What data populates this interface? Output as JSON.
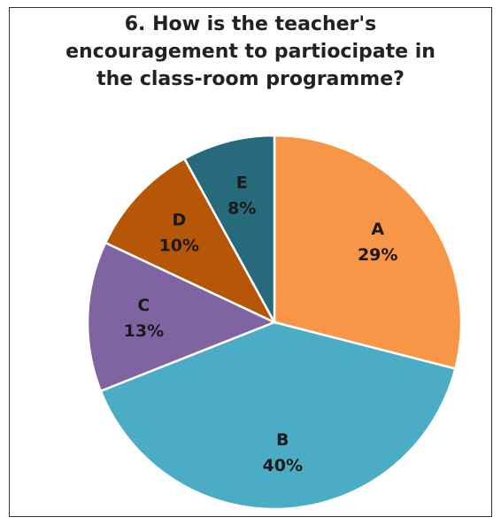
{
  "chart_data": {
    "type": "pie",
    "title": "6. How is the teacher's encouragement to partiocipate in the class-room programme?",
    "categories": [
      "A",
      "B",
      "C",
      "D",
      "E"
    ],
    "values": [
      29,
      40,
      13,
      10,
      8
    ],
    "value_labels": [
      "29%",
      "40%",
      "13%",
      "10%",
      "8%"
    ],
    "colors": [
      "#f79646",
      "#4bacc6",
      "#8064a2",
      "#b65708",
      "#276a7c"
    ]
  }
}
